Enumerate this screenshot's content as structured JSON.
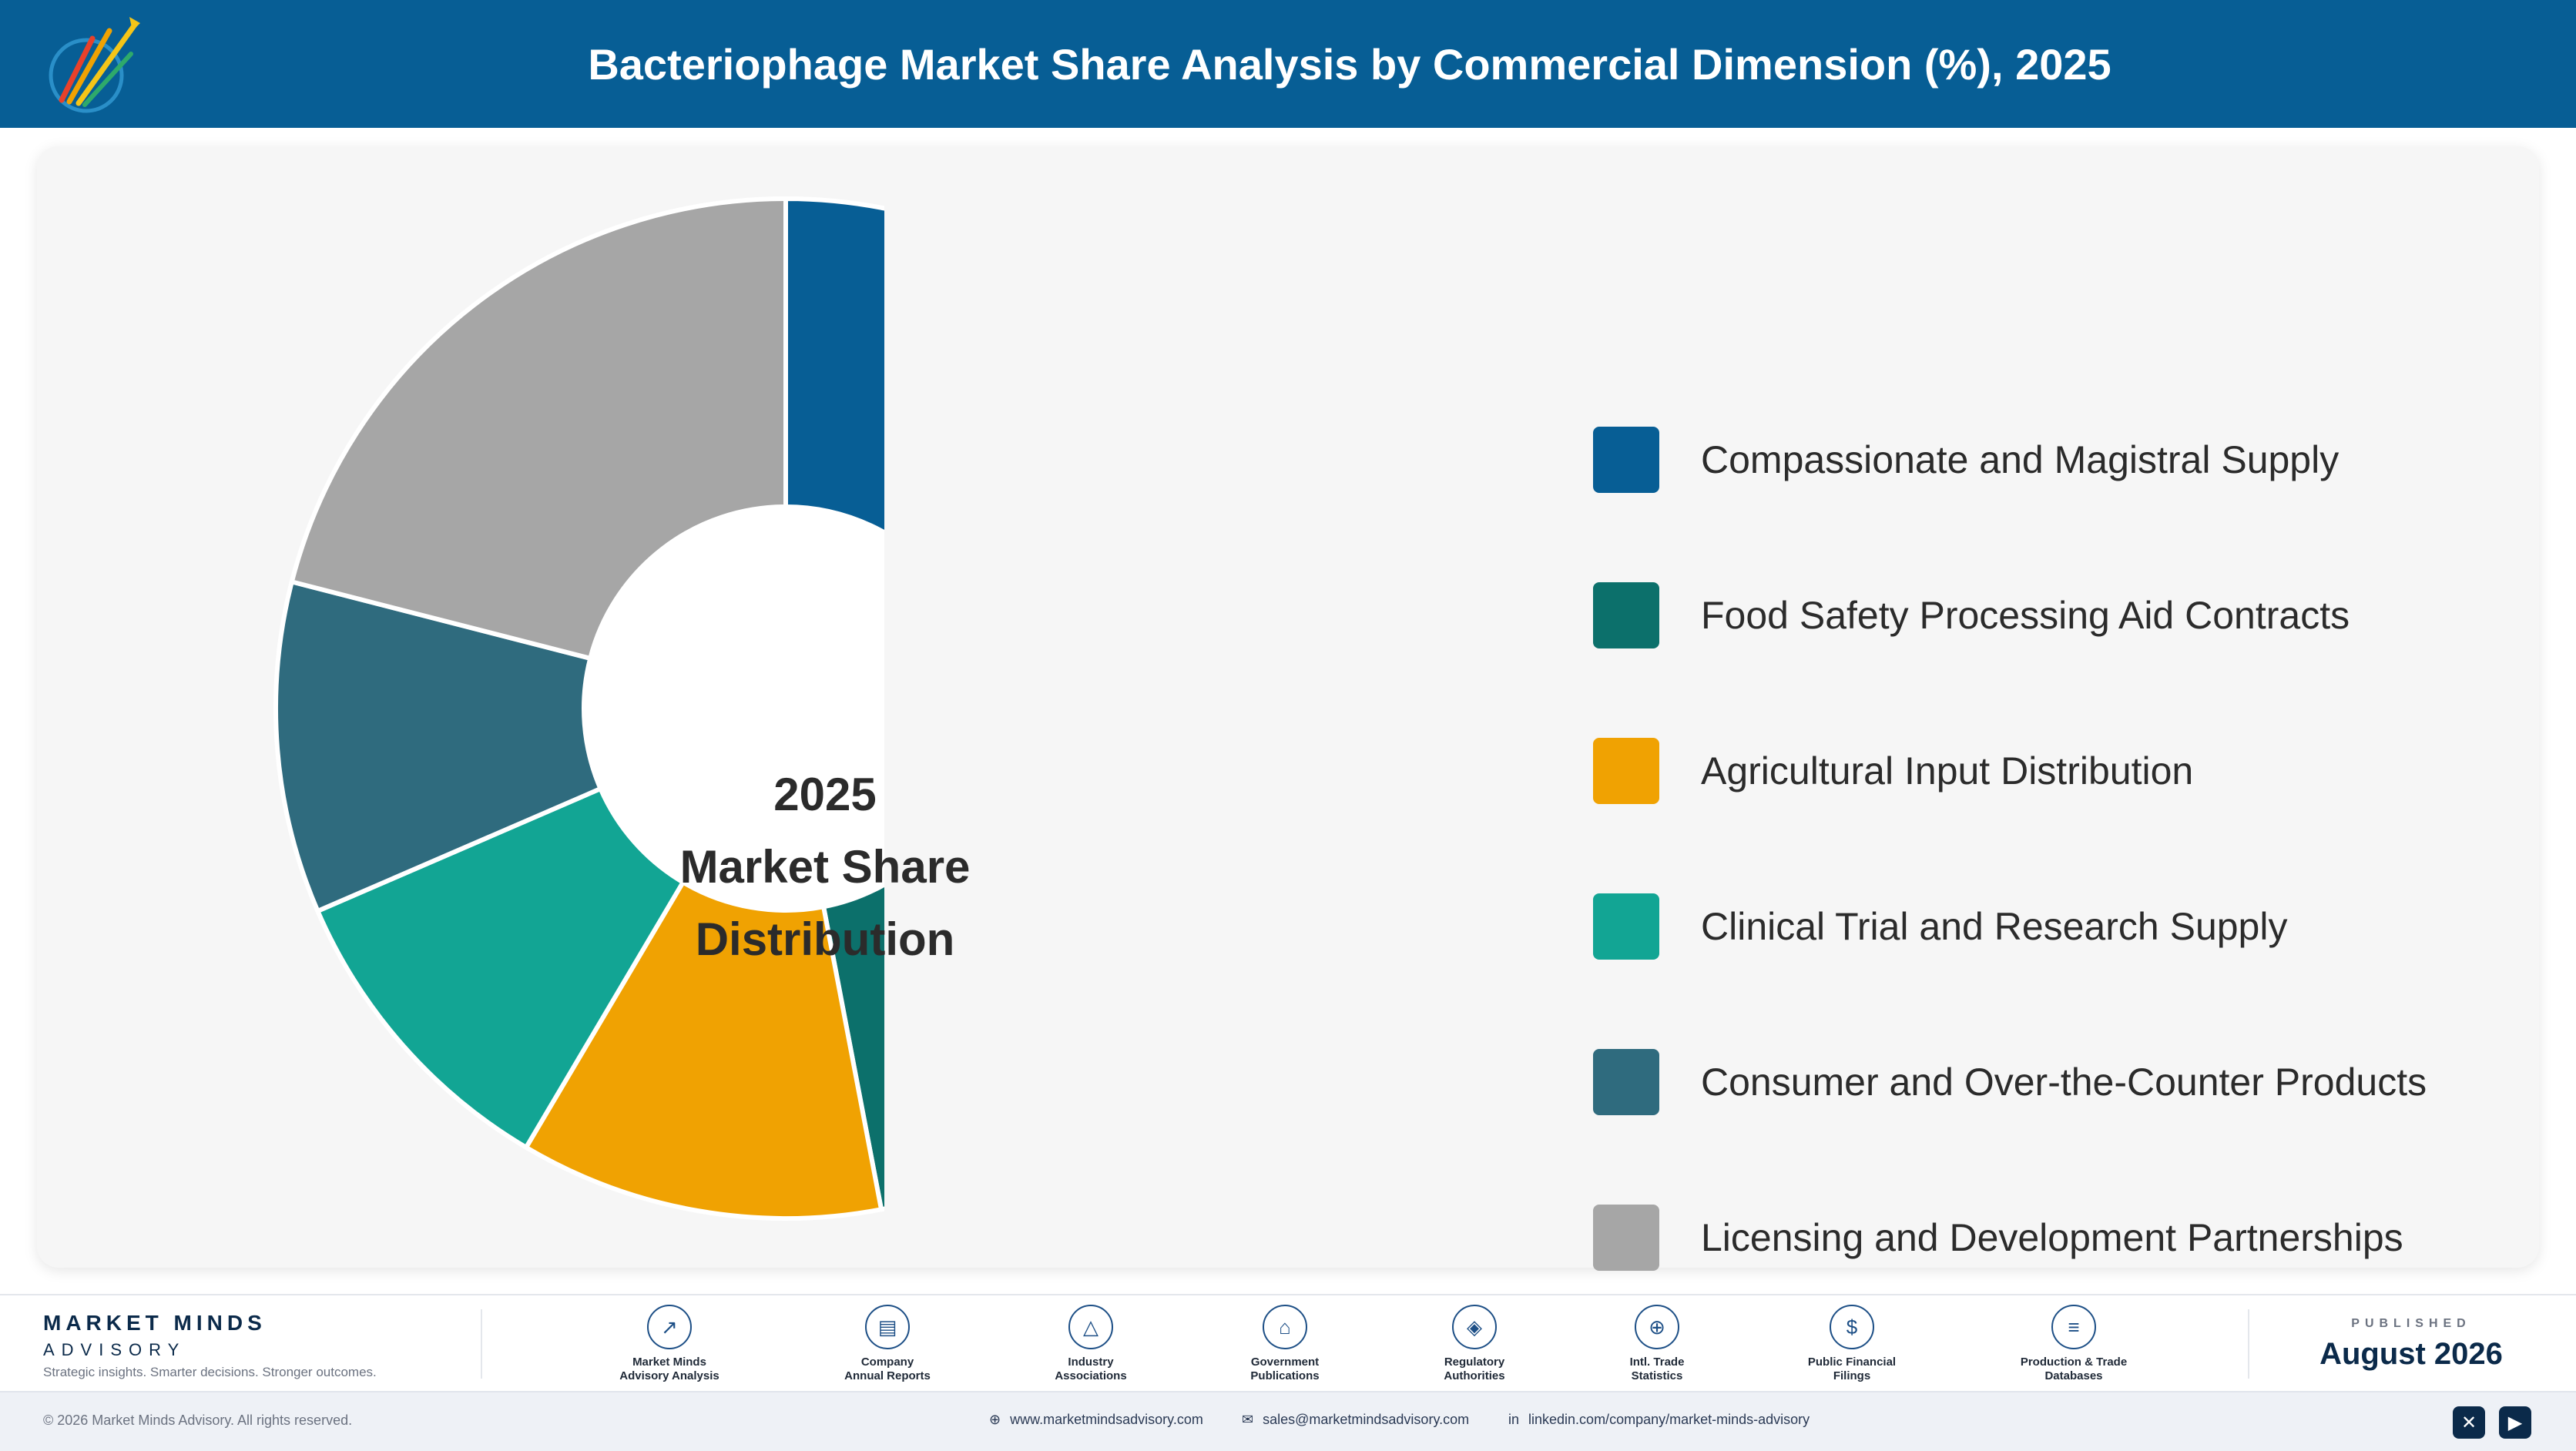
{
  "header": {
    "title": "Bacteriophage Market Share Analysis by Commercial Dimension (%), 2025"
  },
  "chart_data": {
    "type": "pie",
    "donut": true,
    "center_label": [
      "2025",
      "Market Share",
      "Distribution"
    ],
    "categories": [
      "Compassionate and Magistral Supply",
      "Food Safety Processing Aid Contracts",
      "Agricultural Input Distribution",
      "Clinical Trial and Research Supply",
      "Consumer and Over-the-Counter Products",
      "Licensing and Development Partnerships"
    ],
    "values": [
      29.5,
      17.5,
      11.5,
      10,
      10.5,
      21
    ],
    "colors": [
      "#075e95",
      "#0c706b",
      "#f0a202",
      "#12a594",
      "#2f6b7e",
      "#a6a6a6"
    ],
    "legend": "right"
  },
  "footer": {
    "brand_name": "MARKET MINDS",
    "brand_sub": "ADVISORY",
    "tagline": "Strategic insights. Smarter decisions. Stronger outcomes.",
    "sources": [
      {
        "icon": "chart-line-icon",
        "glyph": "↗",
        "line1": "Market Minds",
        "line2": "Advisory Analysis"
      },
      {
        "icon": "document-icon",
        "glyph": "▤",
        "line1": "Company",
        "line2": "Annual Reports"
      },
      {
        "icon": "network-icon",
        "glyph": "△",
        "line1": "Industry",
        "line2": "Associations"
      },
      {
        "icon": "government-building-icon",
        "glyph": "⌂",
        "line1": "Government",
        "line2": "Publications"
      },
      {
        "icon": "shield-icon",
        "glyph": "◈",
        "line1": "Regulatory",
        "line2": "Authorities"
      },
      {
        "icon": "globe-icon",
        "glyph": "⊕",
        "line1": "Intl. Trade",
        "line2": "Statistics"
      },
      {
        "icon": "dollar-icon",
        "glyph": "$",
        "line1": "Public Financial",
        "line2": "Filings"
      },
      {
        "icon": "database-icon",
        "glyph": "≡",
        "line1": "Production & Trade",
        "line2": "Databases"
      }
    ],
    "published_label": "PUBLISHED",
    "published_date": "August 2026"
  },
  "bottom_bar": {
    "copyright": "© 2026 Market Minds Advisory. All rights reserved.",
    "website": "www.marketmindsadvisory.com",
    "email": "sales@marketmindsadvisory.com",
    "linkedin": "linkedin.com/company/market-minds-advisory",
    "social": [
      {
        "icon": "x-icon",
        "glyph": "✕"
      },
      {
        "icon": "youtube-icon",
        "glyph": "▶"
      }
    ]
  }
}
